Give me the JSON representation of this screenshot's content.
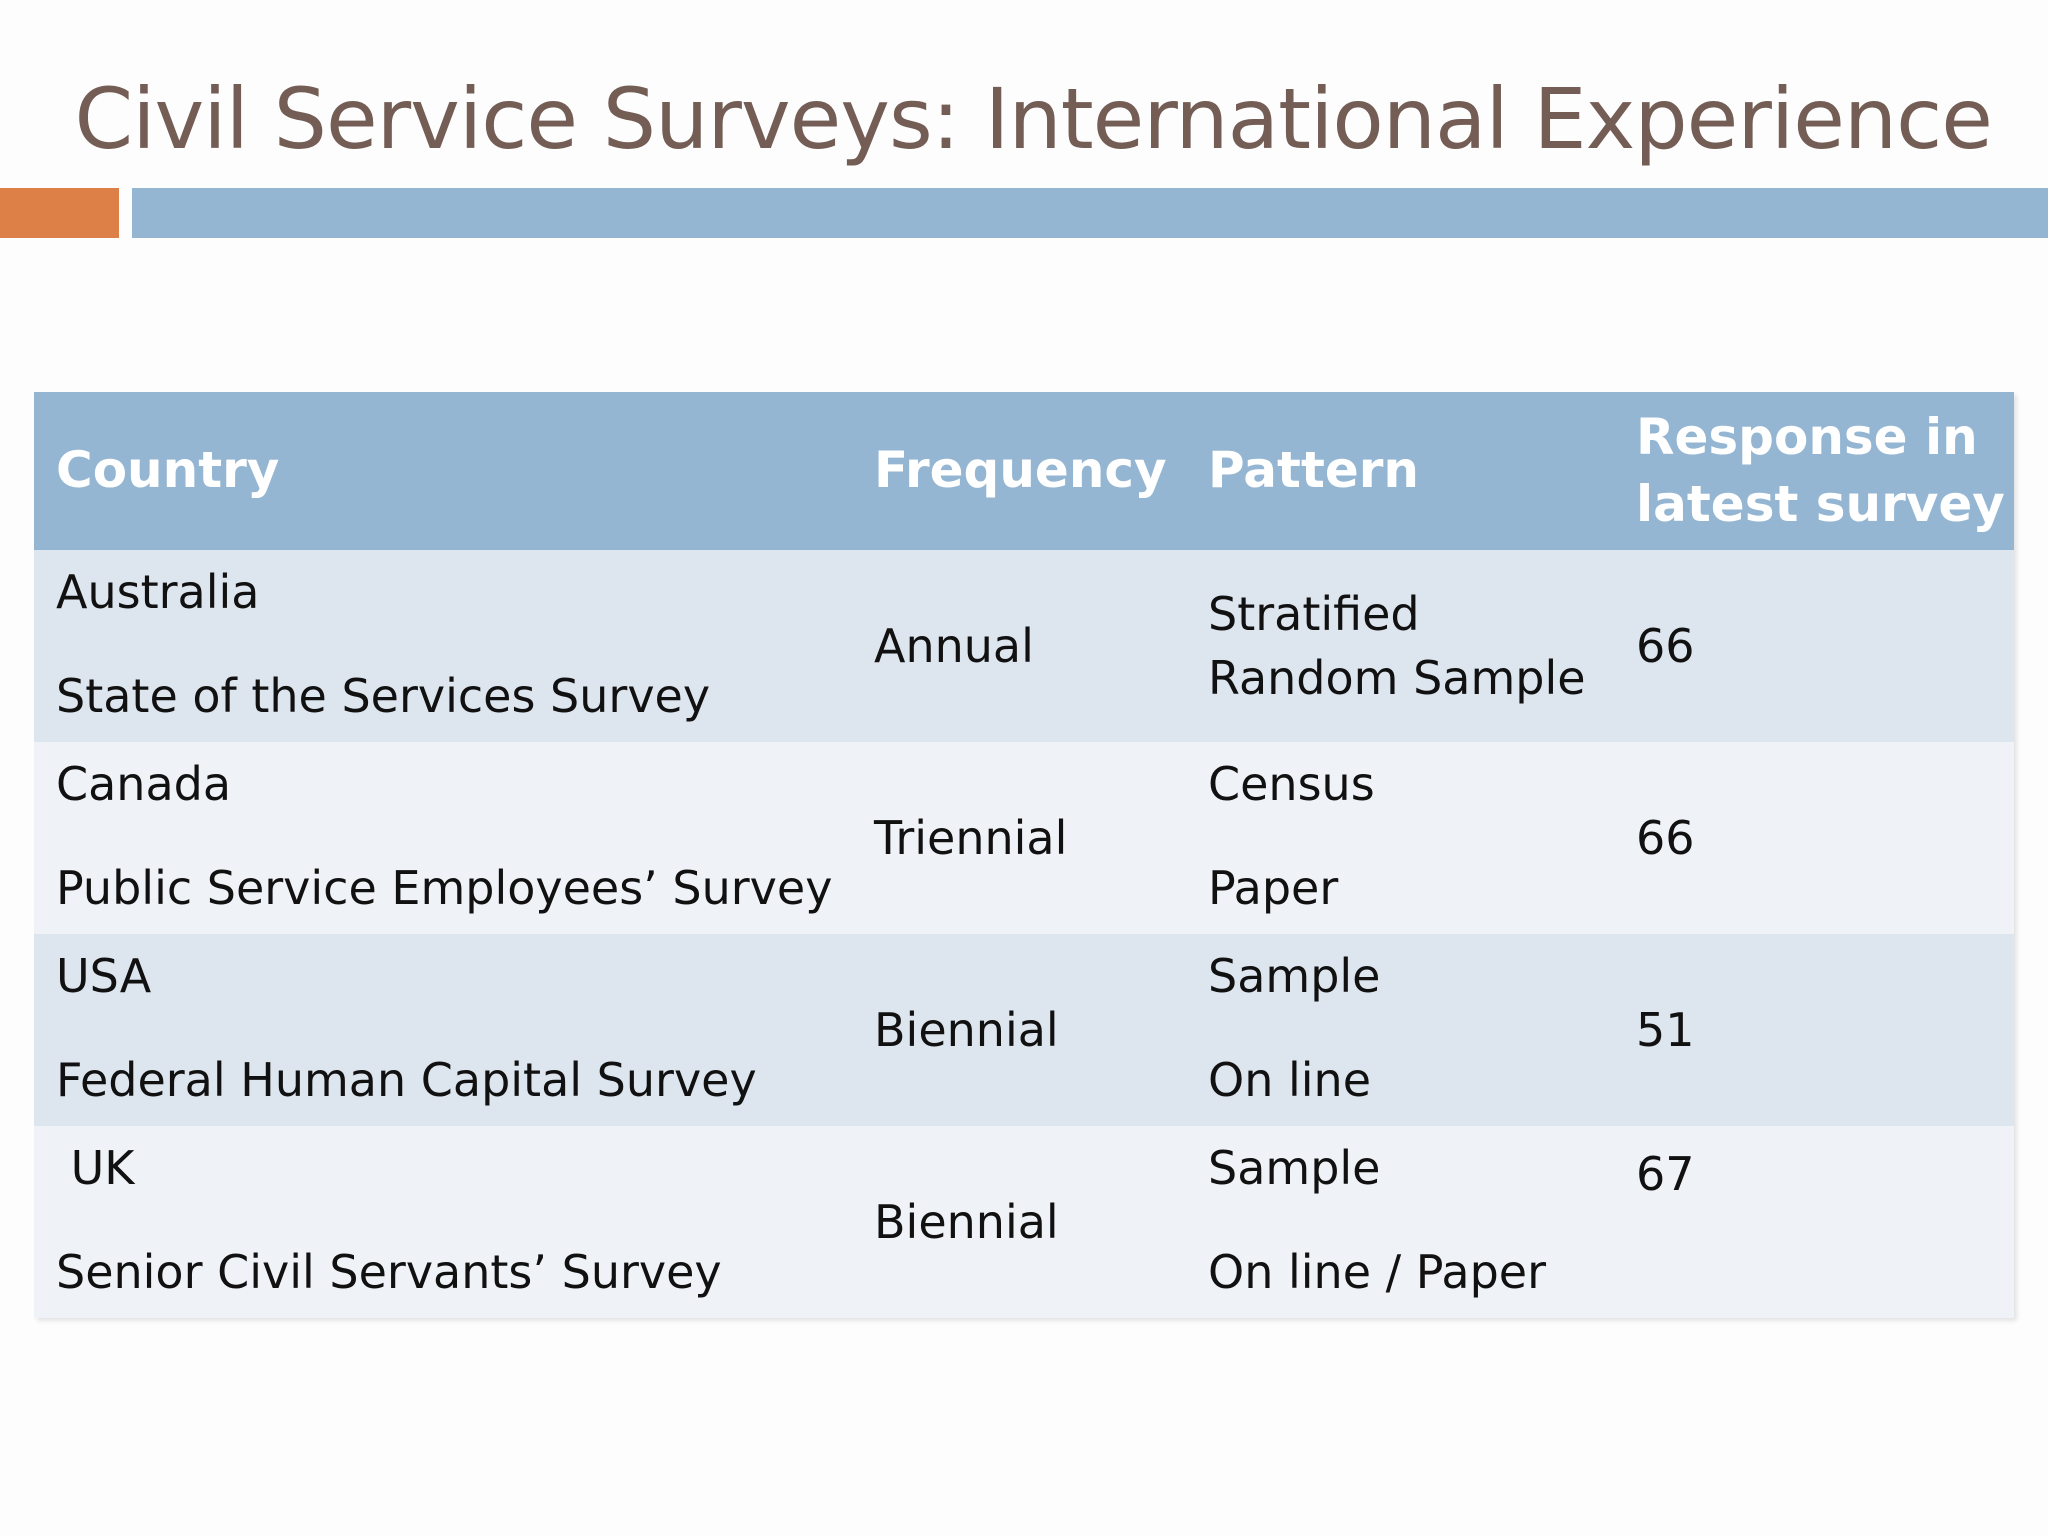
{
  "slide": {
    "title": "Civil Service Surveys: International Experience",
    "accent_color": "#dd8047",
    "bar_color": "#94b6d2"
  },
  "table": {
    "headers": {
      "country": "Country",
      "frequency": "Frequency",
      "pattern": "Pattern",
      "response_line1": "Response in",
      "response_line2": "latest survey"
    },
    "rows": [
      {
        "country": "Australia",
        "survey": "State of the Services Survey",
        "frequency": "Annual",
        "pattern_line1": "Stratified",
        "pattern_line2": "Random Sample",
        "response": "66"
      },
      {
        "country": "Canada",
        "survey": "Public Service Employees’ Survey",
        "frequency": "Triennial",
        "pattern_line1": "Census",
        "pattern_line2": "Paper",
        "response": "66"
      },
      {
        "country": "USA",
        "survey": "Federal Human Capital Survey",
        "frequency": "Biennial",
        "pattern_line1": "Sample",
        "pattern_line2": "On line",
        "response": "51"
      },
      {
        "country": " UK",
        "survey": "Senior Civil Servants’ Survey",
        "frequency": "Biennial",
        "pattern_line1": "Sample",
        "pattern_line2": "On line / Paper",
        "response": "67"
      }
    ]
  }
}
